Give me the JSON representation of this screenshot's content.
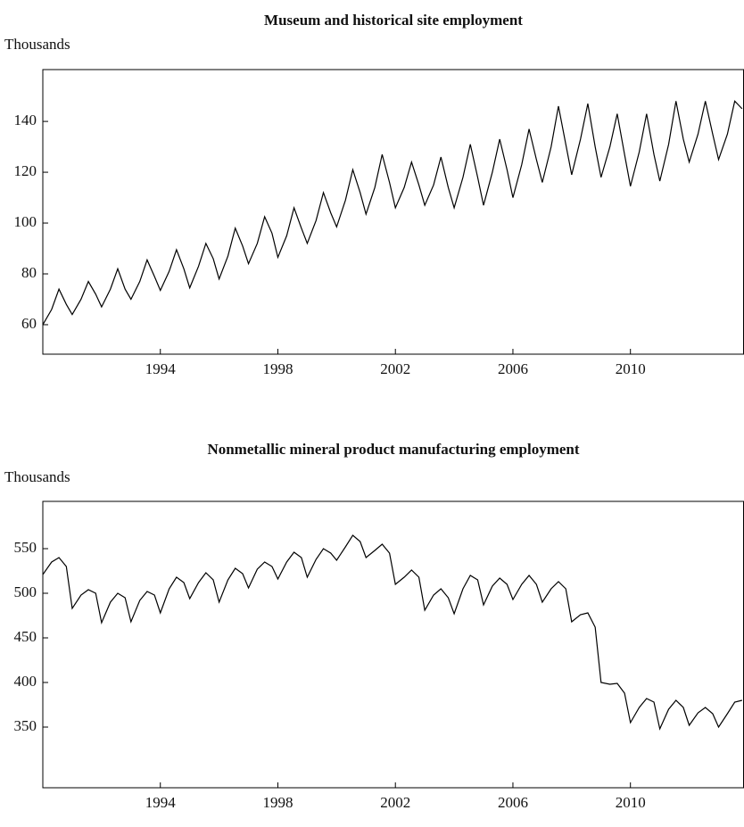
{
  "chart_data": [
    {
      "type": "line",
      "title": "Museum and historical site employment",
      "y_label": "Thousands",
      "x": [
        1990,
        1990.3,
        1990.55,
        1990.8,
        1991,
        1991.3,
        1991.55,
        1991.8,
        1992,
        1992.3,
        1992.55,
        1992.8,
        1993,
        1993.3,
        1993.55,
        1993.8,
        1994,
        1994.3,
        1994.55,
        1994.8,
        1995,
        1995.3,
        1995.55,
        1995.8,
        1996,
        1996.3,
        1996.55,
        1996.8,
        1997,
        1997.3,
        1997.55,
        1997.8,
        1998,
        1998.3,
        1998.55,
        1998.8,
        1999,
        1999.3,
        1999.55,
        1999.8,
        2000,
        2000.3,
        2000.55,
        2000.8,
        2001,
        2001.3,
        2001.55,
        2001.8,
        2002,
        2002.3,
        2002.55,
        2002.8,
        2003,
        2003.3,
        2003.55,
        2003.8,
        2004,
        2004.3,
        2004.55,
        2004.8,
        2005,
        2005.3,
        2005.55,
        2005.8,
        2006,
        2006.3,
        2006.55,
        2006.8,
        2007,
        2007.3,
        2007.55,
        2007.8,
        2008,
        2008.3,
        2008.55,
        2008.8,
        2009,
        2009.3,
        2009.55,
        2009.8,
        2010,
        2010.3,
        2010.55,
        2010.8,
        2011,
        2011.3,
        2011.55,
        2011.8,
        2012,
        2012.3,
        2012.55,
        2012.8,
        2013,
        2013.3,
        2013.55,
        2013.8
      ],
      "series": [
        {
          "color": "#000000",
          "values": [
            60,
            66,
            74,
            68,
            64,
            70,
            77,
            72,
            67,
            74,
            82,
            74,
            70,
            77,
            85.5,
            79,
            73.5,
            81,
            89.5,
            82,
            74.5,
            83,
            92,
            86,
            78,
            87,
            98,
            91,
            84,
            92,
            102.5,
            96,
            86.5,
            95,
            106,
            98,
            92,
            101,
            112,
            104,
            98.5,
            109,
            121,
            112,
            103.5,
            114,
            127,
            116,
            106,
            114,
            124,
            115,
            107,
            115,
            126,
            114,
            106,
            118,
            131,
            118,
            107,
            120,
            133,
            121,
            110,
            123,
            137,
            125,
            116,
            130,
            146,
            131,
            119,
            133,
            147,
            130,
            118,
            130,
            143,
            127,
            114.5,
            128,
            143,
            127,
            116.5,
            131,
            148,
            133,
            124,
            135,
            148,
            135,
            125,
            135,
            148,
            145
          ]
        }
      ],
      "xlim": [
        1990,
        2013.85
      ],
      "xticks": [
        1994,
        1998,
        2002,
        2006,
        2010
      ],
      "ylim": [
        48.4,
        160.4
      ],
      "yticks": [
        60,
        80,
        100,
        120,
        140
      ]
    },
    {
      "type": "line",
      "title": "Nonmetallic mineral product manufacturing employment",
      "y_label": "Thousands",
      "x": [
        1990,
        1990.3,
        1990.55,
        1990.8,
        1991,
        1991.3,
        1991.55,
        1991.8,
        1992,
        1992.3,
        1992.55,
        1992.8,
        1993,
        1993.3,
        1993.55,
        1993.8,
        1994,
        1994.3,
        1994.55,
        1994.8,
        1995,
        1995.3,
        1995.55,
        1995.8,
        1996,
        1996.3,
        1996.55,
        1996.8,
        1997,
        1997.3,
        1997.55,
        1997.8,
        1998,
        1998.3,
        1998.55,
        1998.8,
        1999,
        1999.3,
        1999.55,
        1999.8,
        2000,
        2000.3,
        2000.55,
        2000.8,
        2001,
        2001.3,
        2001.55,
        2001.8,
        2002,
        2002.3,
        2002.55,
        2002.8,
        2003,
        2003.3,
        2003.55,
        2003.8,
        2004,
        2004.3,
        2004.55,
        2004.8,
        2005,
        2005.3,
        2005.55,
        2005.8,
        2006,
        2006.3,
        2006.55,
        2006.8,
        2007,
        2007.3,
        2007.55,
        2007.8,
        2008,
        2008.3,
        2008.55,
        2008.8,
        2009,
        2009.3,
        2009.55,
        2009.8,
        2010,
        2010.3,
        2010.55,
        2010.8,
        2011,
        2011.3,
        2011.55,
        2011.8,
        2012,
        2012.3,
        2012.55,
        2012.8,
        2013,
        2013.3,
        2013.55,
        2013.8
      ],
      "series": [
        {
          "color": "#000000",
          "values": [
            521,
            535,
            540,
            530,
            483,
            498,
            504,
            500,
            467,
            490,
            500,
            495,
            468,
            492,
            502,
            498,
            478,
            505,
            518,
            512,
            494,
            512,
            523,
            515,
            490,
            515,
            528,
            522,
            506,
            527,
            535,
            530,
            516,
            535,
            546,
            540,
            518,
            538,
            550,
            545,
            537,
            552,
            565,
            558,
            540,
            548,
            555,
            545,
            510,
            518,
            526,
            518,
            481,
            498,
            505,
            495,
            477,
            505,
            520,
            515,
            487,
            508,
            517,
            510,
            493,
            510,
            520,
            510,
            490,
            505,
            513,
            505,
            468,
            476,
            478,
            462,
            400,
            398,
            399,
            388,
            355,
            372,
            382,
            378,
            348,
            370,
            380,
            372,
            352,
            366,
            372,
            365,
            350,
            365,
            378,
            380
          ]
        }
      ],
      "xlim": [
        1990,
        2013.85
      ],
      "xticks": [
        1994,
        1998,
        2002,
        2006,
        2010
      ],
      "ylim": [
        282,
        603
      ],
      "yticks": [
        350,
        400,
        450,
        500,
        550
      ]
    }
  ]
}
